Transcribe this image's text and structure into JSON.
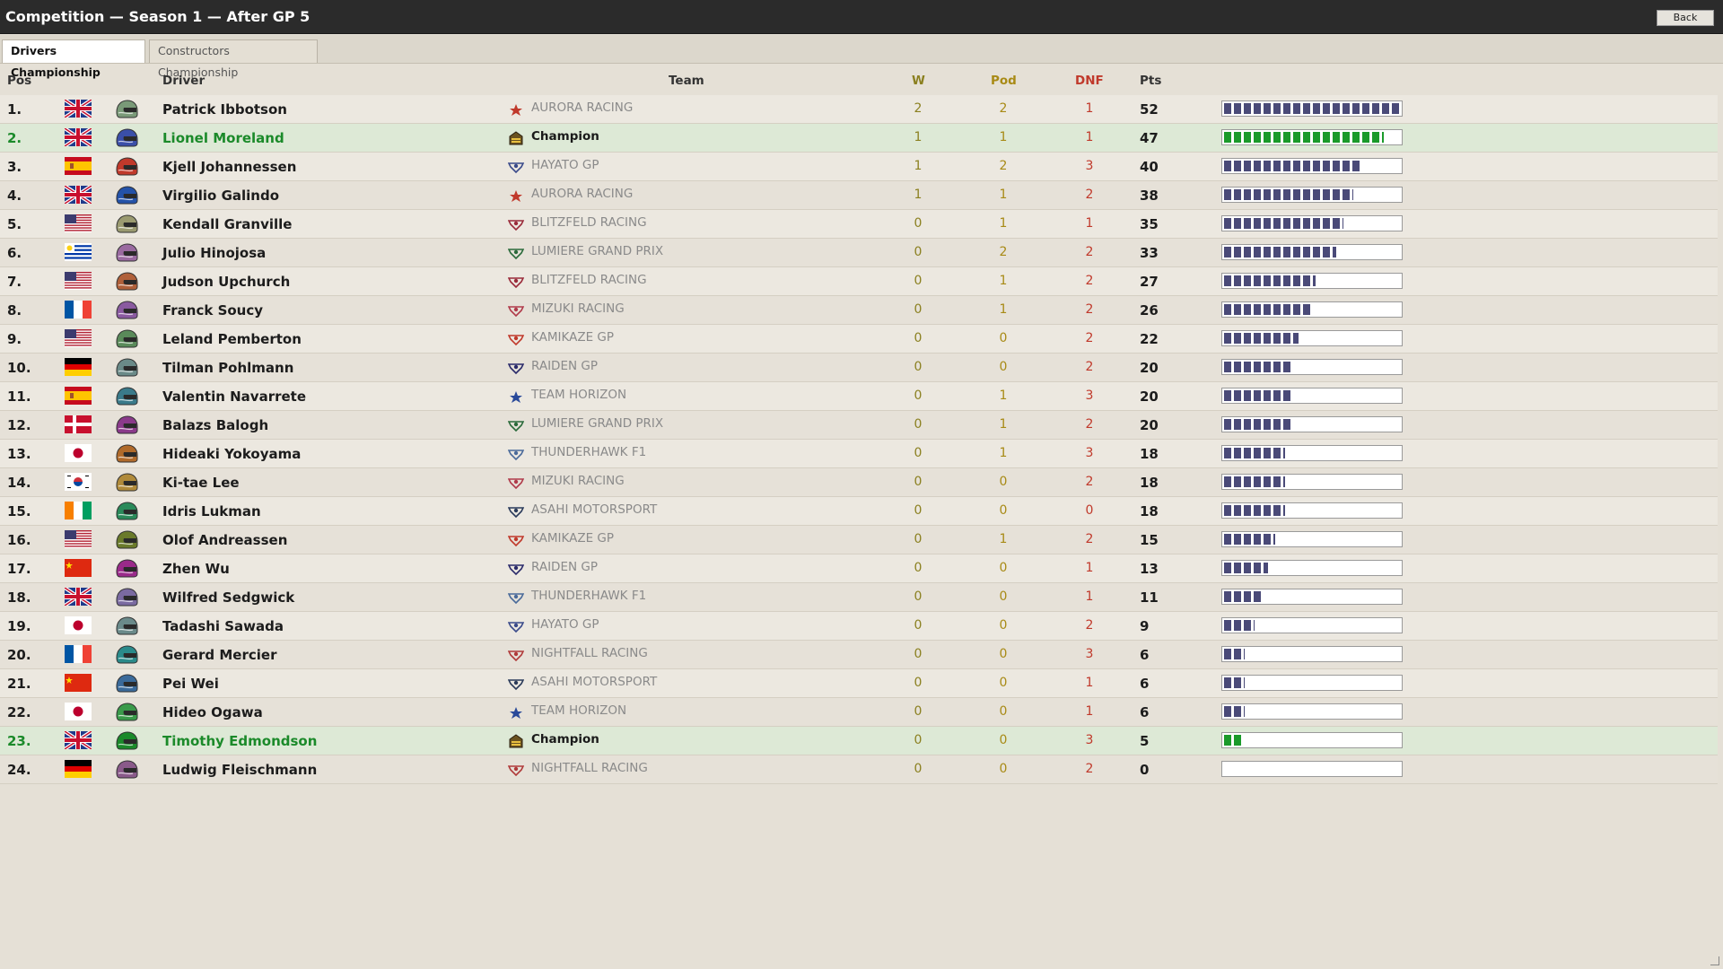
{
  "window": {
    "title": "Competition — Season 1 — After GP 5",
    "back_label": "Back"
  },
  "tabs": [
    {
      "label": "Drivers Championship",
      "active": true
    },
    {
      "label": "Constructors Championship",
      "active": false
    }
  ],
  "columns": {
    "pos": "Pos",
    "driver": "Driver",
    "team": "Team",
    "w": "W",
    "pod": "Pod",
    "dnf": "DNF",
    "pts": "Pts"
  },
  "max_points": 52,
  "rows": [
    {
      "pos": "1.",
      "flag": "uk",
      "helmet": "#7a9a78",
      "name": "Patrick Ibbotson",
      "team_icon": "aurora",
      "team": "AURORA RACING",
      "w": "2",
      "pod": "2",
      "dnf": "1",
      "pts": "52",
      "highlight": false
    },
    {
      "pos": "2.",
      "flag": "uk",
      "helmet": "#3a4fa8",
      "name": "Lionel Moreland",
      "team_icon": "champion",
      "team": "Champion",
      "w": "1",
      "pod": "1",
      "dnf": "1",
      "pts": "47",
      "highlight": true
    },
    {
      "pos": "3.",
      "flag": "spain",
      "helmet": "#c0392b",
      "name": "Kjell Johannessen",
      "team_icon": "hayato",
      "team": "HAYATO GP",
      "w": "1",
      "pod": "2",
      "dnf": "3",
      "pts": "40",
      "highlight": false
    },
    {
      "pos": "4.",
      "flag": "uk",
      "helmet": "#2452a8",
      "name": "Virgilio Galindo",
      "team_icon": "aurora",
      "team": "AURORA RACING",
      "w": "1",
      "pod": "1",
      "dnf": "2",
      "pts": "38",
      "highlight": false
    },
    {
      "pos": "5.",
      "flag": "usa",
      "helmet": "#9a9a70",
      "name": "Kendall Granville",
      "team_icon": "blitzfeld",
      "team": "BLITZFELD RACING",
      "w": "0",
      "pod": "1",
      "dnf": "1",
      "pts": "35",
      "highlight": false
    },
    {
      "pos": "6.",
      "flag": "uruguay",
      "helmet": "#9a6aa0",
      "name": "Julio Hinojosa",
      "team_icon": "lumiere",
      "team": "LUMIERE GRAND PRIX",
      "w": "0",
      "pod": "2",
      "dnf": "2",
      "pts": "33",
      "highlight": false
    },
    {
      "pos": "7.",
      "flag": "usa",
      "helmet": "#b0603a",
      "name": "Judson Upchurch",
      "team_icon": "blitzfeld",
      "team": "BLITZFELD RACING",
      "w": "0",
      "pod": "1",
      "dnf": "2",
      "pts": "27",
      "highlight": false
    },
    {
      "pos": "8.",
      "flag": "france",
      "helmet": "#8a5aa0",
      "name": "Franck Soucy",
      "team_icon": "mizuki",
      "team": "MIZUKI RACING",
      "w": "0",
      "pod": "1",
      "dnf": "2",
      "pts": "26",
      "highlight": false
    },
    {
      "pos": "9.",
      "flag": "usa",
      "helmet": "#5a8a5a",
      "name": "Leland Pemberton",
      "team_icon": "kamikaze",
      "team": "KAMIKAZE GP",
      "w": "0",
      "pod": "0",
      "dnf": "2",
      "pts": "22",
      "highlight": false
    },
    {
      "pos": "10.",
      "flag": "germany",
      "helmet": "#6a8a88",
      "name": "Tilman Pohlmann",
      "team_icon": "raiden",
      "team": "RAIDEN GP",
      "w": "0",
      "pod": "0",
      "dnf": "2",
      "pts": "20",
      "highlight": false
    },
    {
      "pos": "11.",
      "flag": "spain",
      "helmet": "#3a7a8a",
      "name": "Valentin Navarrete",
      "team_icon": "horizon",
      "team": "TEAM HORIZON",
      "w": "0",
      "pod": "1",
      "dnf": "3",
      "pts": "20",
      "highlight": false
    },
    {
      "pos": "12.",
      "flag": "denmark",
      "helmet": "#8a3a8a",
      "name": "Balazs Balogh",
      "team_icon": "lumiere",
      "team": "LUMIERE GRAND PRIX",
      "w": "0",
      "pod": "1",
      "dnf": "2",
      "pts": "20",
      "highlight": false
    },
    {
      "pos": "13.",
      "flag": "japan",
      "helmet": "#b06a2a",
      "name": "Hideaki Yokoyama",
      "team_icon": "thunder",
      "team": "THUNDERHAWK F1",
      "w": "0",
      "pod": "1",
      "dnf": "3",
      "pts": "18",
      "highlight": false
    },
    {
      "pos": "14.",
      "flag": "korea",
      "helmet": "#b08a3a",
      "name": "Ki-tae Lee",
      "team_icon": "mizuki",
      "team": "MIZUKI RACING",
      "w": "0",
      "pod": "0",
      "dnf": "2",
      "pts": "18",
      "highlight": false
    },
    {
      "pos": "15.",
      "flag": "ivory",
      "helmet": "#2a8a5a",
      "name": "Idris Lukman",
      "team_icon": "asahi",
      "team": "ASAHI MOTORSPORT",
      "w": "0",
      "pod": "0",
      "dnf": "0",
      "pts": "18",
      "highlight": false
    },
    {
      "pos": "16.",
      "flag": "usa",
      "helmet": "#6a7a2a",
      "name": "Olof Andreassen",
      "team_icon": "kamikaze",
      "team": "KAMIKAZE GP",
      "w": "0",
      "pod": "1",
      "dnf": "2",
      "pts": "15",
      "highlight": false
    },
    {
      "pos": "17.",
      "flag": "china",
      "helmet": "#9a2a8a",
      "name": "Zhen Wu",
      "team_icon": "raiden",
      "team": "RAIDEN GP",
      "w": "0",
      "pod": "0",
      "dnf": "1",
      "pts": "13",
      "highlight": false
    },
    {
      "pos": "18.",
      "flag": "uk",
      "helmet": "#7a6aa0",
      "name": "Wilfred Sedgwick",
      "team_icon": "thunder",
      "team": "THUNDERHAWK F1",
      "w": "0",
      "pod": "0",
      "dnf": "1",
      "pts": "11",
      "highlight": false
    },
    {
      "pos": "19.",
      "flag": "japan",
      "helmet": "#6a8a8a",
      "name": "Tadashi Sawada",
      "team_icon": "hayato",
      "team": "HAYATO GP",
      "w": "0",
      "pod": "0",
      "dnf": "2",
      "pts": "9",
      "highlight": false
    },
    {
      "pos": "20.",
      "flag": "france",
      "helmet": "#2a8a8a",
      "name": "Gerard Mercier",
      "team_icon": "nightfall",
      "team": "NIGHTFALL RACING",
      "w": "0",
      "pod": "0",
      "dnf": "3",
      "pts": "6",
      "highlight": false
    },
    {
      "pos": "21.",
      "flag": "china",
      "helmet": "#3a6a9a",
      "name": "Pei Wei",
      "team_icon": "asahi",
      "team": "ASAHI MOTORSPORT",
      "w": "0",
      "pod": "0",
      "dnf": "1",
      "pts": "6",
      "highlight": false
    },
    {
      "pos": "22.",
      "flag": "japan",
      "helmet": "#3a9a4a",
      "name": "Hideo Ogawa",
      "team_icon": "horizon",
      "team": "TEAM HORIZON",
      "w": "0",
      "pod": "0",
      "dnf": "1",
      "pts": "6",
      "highlight": false
    },
    {
      "pos": "23.",
      "flag": "uk",
      "helmet": "#1a8a2a",
      "name": "Timothy Edmondson",
      "team_icon": "champion",
      "team": "Champion",
      "w": "0",
      "pod": "0",
      "dnf": "3",
      "pts": "5",
      "highlight": true
    },
    {
      "pos": "24.",
      "flag": "germany",
      "helmet": "#8a5a8a",
      "name": "Ludwig Fleischmann",
      "team_icon": "nightfall",
      "team": "NIGHTFALL RACING",
      "w": "0",
      "pod": "0",
      "dnf": "2",
      "pts": "0",
      "highlight": false
    }
  ]
}
